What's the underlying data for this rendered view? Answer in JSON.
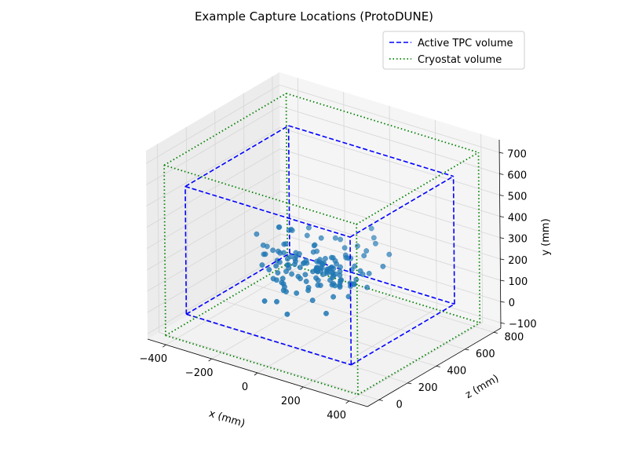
{
  "chart_data": {
    "type": "scatter",
    "projection": "3d",
    "title": "Example Capture Locations (ProtoDUNE)",
    "xlabel": "x (mm)",
    "ylabel": "y (mm)",
    "zlabel": "z (mm)",
    "x_ticks": [
      "−400",
      "−200",
      "0",
      "200",
      "400"
    ],
    "y_ticks": [
      "−100",
      "0",
      "100",
      "200",
      "300",
      "400",
      "500",
      "600",
      "700"
    ],
    "z_ticks": [
      "0",
      "200",
      "400",
      "600",
      "800"
    ],
    "xlim": [
      -480,
      480
    ],
    "ylim": [
      -125,
      760
    ],
    "zlim": [
      -80,
      850
    ],
    "grid": true,
    "legend_position": "top-right",
    "colors": {
      "points": "#1f77b4",
      "tpc": "#0000ff",
      "cryostat": "#008000"
    },
    "series": [
      {
        "name": "Active TPC volume",
        "style": "dashed",
        "box": {
          "x": [
            -360,
            360
          ],
          "y": [
            0,
            600
          ],
          "z": [
            0,
            720
          ]
        }
      },
      {
        "name": "Cryostat volume",
        "style": "dotted",
        "box": {
          "x": [
            -420,
            420
          ],
          "y": [
            -100,
            700
          ],
          "z": [
            -50,
            800
          ]
        }
      }
    ],
    "points": [
      {
        "x": -281,
        "y": 257,
        "z": 367
      },
      {
        "x": 248,
        "y": 265,
        "z": 404
      },
      {
        "x": -117,
        "y": 212,
        "z": 240
      },
      {
        "x": 145,
        "y": 103,
        "z": 170
      },
      {
        "x": 228,
        "y": 285,
        "z": 479
      },
      {
        "x": -245,
        "y": 221,
        "z": 355
      },
      {
        "x": 131,
        "y": 195,
        "z": 255
      },
      {
        "x": 183,
        "y": 244,
        "z": 350
      },
      {
        "x": 74,
        "y": 235,
        "z": 307
      },
      {
        "x": 180,
        "y": 197,
        "z": 285
      },
      {
        "x": -196,
        "y": 267,
        "z": 457
      },
      {
        "x": -90,
        "y": 105,
        "z": 116
      },
      {
        "x": 31,
        "y": 223,
        "z": 313
      },
      {
        "x": -120,
        "y": 172,
        "z": 257
      },
      {
        "x": -210,
        "y": 207,
        "z": 314
      },
      {
        "x": -90,
        "y": 209,
        "z": 283
      },
      {
        "x": 59,
        "y": 119,
        "z": 213
      },
      {
        "x": -248,
        "y": 202,
        "z": 387
      },
      {
        "x": -168,
        "y": 213,
        "z": 349
      },
      {
        "x": -109,
        "y": 276,
        "z": 445
      },
      {
        "x": -144,
        "y": 193,
        "z": 309
      },
      {
        "x": 87,
        "y": 167,
        "z": 313
      },
      {
        "x": 80,
        "y": 244,
        "z": 347
      },
      {
        "x": 63,
        "y": 169,
        "z": 329
      },
      {
        "x": -93,
        "y": 208,
        "z": 280
      },
      {
        "x": 34,
        "y": 190,
        "z": 278
      },
      {
        "x": 6,
        "y": 239,
        "z": 350
      },
      {
        "x": 8,
        "y": 75,
        "z": 117
      },
      {
        "x": -85,
        "y": 232,
        "z": 330
      },
      {
        "x": 136,
        "y": 276,
        "z": 467
      },
      {
        "x": 31,
        "y": 163,
        "z": 230
      },
      {
        "x": 126,
        "y": 191,
        "z": 299
      },
      {
        "x": 23,
        "y": 293,
        "z": 466
      },
      {
        "x": -234,
        "y": 272,
        "z": 451
      },
      {
        "x": 46,
        "y": 264,
        "z": 459
      },
      {
        "x": 179,
        "y": 218,
        "z": 372
      },
      {
        "x": 86,
        "y": 236,
        "z": 317
      },
      {
        "x": -81,
        "y": 169,
        "z": 229
      },
      {
        "x": -170,
        "y": 241,
        "z": 380
      },
      {
        "x": 62,
        "y": 245,
        "z": 367
      },
      {
        "x": -104,
        "y": 180,
        "z": 308
      },
      {
        "x": 36,
        "y": 210,
        "z": 309
      },
      {
        "x": 46,
        "y": 208,
        "z": 359
      },
      {
        "x": 132,
        "y": 313,
        "z": 526
      },
      {
        "x": -31,
        "y": 184,
        "z": 257
      },
      {
        "x": 166,
        "y": 199,
        "z": 305
      },
      {
        "x": -2,
        "y": 201,
        "z": 344
      },
      {
        "x": -184,
        "y": 269,
        "z": 461
      },
      {
        "x": 33,
        "y": 235,
        "z": 327
      },
      {
        "x": 58,
        "y": 223,
        "z": 318
      },
      {
        "x": 11,
        "y": 204,
        "z": 314
      },
      {
        "x": -3,
        "y": 230,
        "z": 343
      },
      {
        "x": -105,
        "y": 170,
        "z": 291
      },
      {
        "x": -38,
        "y": 225,
        "z": 311
      },
      {
        "x": -80,
        "y": 143,
        "z": 232
      },
      {
        "x": 223,
        "y": 187,
        "z": 332
      },
      {
        "x": 127,
        "y": 144,
        "z": 249
      },
      {
        "x": -114,
        "y": 303,
        "z": 465
      },
      {
        "x": -26,
        "y": 261,
        "z": 356
      },
      {
        "x": -46,
        "y": 270,
        "z": 393
      },
      {
        "x": -40,
        "y": 242,
        "z": 402
      },
      {
        "x": -100,
        "y": 161,
        "z": 216
      },
      {
        "x": 63,
        "y": 197,
        "z": 347
      },
      {
        "x": 119,
        "y": 219,
        "z": 308
      },
      {
        "x": 33,
        "y": 153,
        "z": 224
      },
      {
        "x": 103,
        "y": 180,
        "z": 279
      },
      {
        "x": 163,
        "y": 311,
        "z": 488
      },
      {
        "x": 67,
        "y": 226,
        "z": 301
      },
      {
        "x": -44,
        "y": 156,
        "z": 292
      },
      {
        "x": 51,
        "y": 205,
        "z": 327
      },
      {
        "x": 26,
        "y": 210,
        "z": 303
      },
      {
        "x": -71,
        "y": 248,
        "z": 330
      },
      {
        "x": -199,
        "y": 215,
        "z": 349
      },
      {
        "x": -10,
        "y": 131,
        "z": 211
      },
      {
        "x": -47,
        "y": 221,
        "z": 339
      },
      {
        "x": 114,
        "y": 189,
        "z": 325
      },
      {
        "x": 97,
        "y": 286,
        "z": 467
      },
      {
        "x": 124,
        "y": 217,
        "z": 384
      },
      {
        "x": 92,
        "y": 325,
        "z": 573
      },
      {
        "x": -237,
        "y": 185,
        "z": 346
      },
      {
        "x": 86,
        "y": 197,
        "z": 308
      },
      {
        "x": 36,
        "y": 190,
        "z": 322
      },
      {
        "x": -80,
        "y": 166,
        "z": 290
      },
      {
        "x": -140,
        "y": 266,
        "z": 345
      },
      {
        "x": -79,
        "y": 155,
        "z": 218
      },
      {
        "x": 32,
        "y": 241,
        "z": 390
      },
      {
        "x": -66,
        "y": 217,
        "z": 289
      },
      {
        "x": 74,
        "y": 236,
        "z": 324
      },
      {
        "x": 28,
        "y": 215,
        "z": 329
      },
      {
        "x": 130,
        "y": 231,
        "z": 394
      },
      {
        "x": 82,
        "y": 216,
        "z": 312
      },
      {
        "x": -60,
        "y": 258,
        "z": 420
      },
      {
        "x": 97,
        "y": 247,
        "z": 419
      },
      {
        "x": 13,
        "y": 209,
        "z": 311
      },
      {
        "x": -150,
        "y": 182,
        "z": 244
      },
      {
        "x": -57,
        "y": 196,
        "z": 312
      },
      {
        "x": 20,
        "y": 223,
        "z": 305
      },
      {
        "x": 46,
        "y": 249,
        "z": 378
      },
      {
        "x": 138,
        "y": 262,
        "z": 447
      },
      {
        "x": 136,
        "y": 208,
        "z": 287
      },
      {
        "x": -64,
        "y": 128,
        "z": 207
      },
      {
        "x": -149,
        "y": 221,
        "z": 346
      },
      {
        "x": 96,
        "y": 254,
        "z": 403
      },
      {
        "x": -185,
        "y": 276,
        "z": 455
      },
      {
        "x": -134,
        "y": 144,
        "z": 247
      },
      {
        "x": 10,
        "y": 206,
        "z": 294
      },
      {
        "x": 1,
        "y": 292,
        "z": 467
      },
      {
        "x": -52,
        "y": 126,
        "z": 206
      },
      {
        "x": -96,
        "y": 239,
        "z": 345
      },
      {
        "x": 67,
        "y": 175,
        "z": 256
      },
      {
        "x": -83,
        "y": 123,
        "z": 244
      },
      {
        "x": 178,
        "y": 152,
        "z": 274
      },
      {
        "x": 94,
        "y": 210,
        "z": 304
      },
      {
        "x": -179,
        "y": 215,
        "z": 354
      },
      {
        "x": 161,
        "y": 194,
        "z": 355
      },
      {
        "x": 48,
        "y": 187,
        "z": 270
      },
      {
        "x": 167,
        "y": 187,
        "z": 326
      },
      {
        "x": -203,
        "y": 172,
        "z": 280
      },
      {
        "x": -22,
        "y": 182,
        "z": 292
      },
      {
        "x": 86,
        "y": 265,
        "z": 402
      },
      {
        "x": 135,
        "y": 179,
        "z": 283
      },
      {
        "x": 165,
        "y": 181,
        "z": 335
      },
      {
        "x": 15,
        "y": 197,
        "z": 319
      },
      {
        "x": 204,
        "y": 228,
        "z": 377
      },
      {
        "x": 46,
        "y": 193,
        "z": 337
      },
      {
        "x": -47,
        "y": 110,
        "z": 132
      },
      {
        "x": -48,
        "y": 284,
        "z": 446
      },
      {
        "x": -113,
        "y": 217,
        "z": 314
      },
      {
        "x": 28,
        "y": 233,
        "z": 342
      },
      {
        "x": -87,
        "y": 208,
        "z": 328
      },
      {
        "x": -90,
        "y": 218,
        "z": 330
      },
      {
        "x": 49,
        "y": 166,
        "z": 266
      },
      {
        "x": 8,
        "y": 176,
        "z": 251
      },
      {
        "x": 102,
        "y": 220,
        "z": 336
      },
      {
        "x": 28,
        "y": 236,
        "z": 329
      },
      {
        "x": -39,
        "y": 215,
        "z": 330
      },
      {
        "x": -230,
        "y": 277,
        "z": 441
      },
      {
        "x": 124,
        "y": 176,
        "z": 300
      },
      {
        "x": -54,
        "y": 209,
        "z": 329
      },
      {
        "x": 81,
        "y": 220,
        "z": 372
      },
      {
        "x": 22,
        "y": 244,
        "z": 362
      },
      {
        "x": 4,
        "y": 227,
        "z": 349
      },
      {
        "x": 91,
        "y": 210,
        "z": 321
      },
      {
        "x": -112,
        "y": 220,
        "z": 335
      },
      {
        "x": -153,
        "y": 199,
        "z": 306
      },
      {
        "x": 76,
        "y": 243,
        "z": 420
      }
    ]
  }
}
